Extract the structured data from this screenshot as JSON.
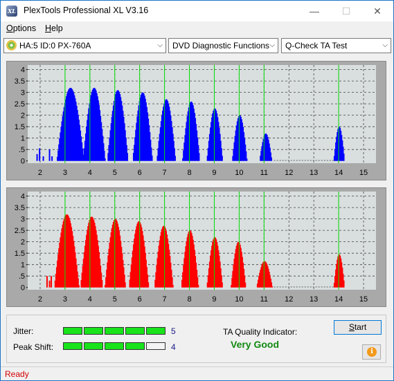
{
  "window": {
    "title": "PlexTools Professional XL V3.16",
    "icon_text": "XL",
    "controls": {
      "minimize": "—",
      "maximize": "☐",
      "close": "✕"
    }
  },
  "menu": {
    "options": {
      "first": "O",
      "rest": "ptions"
    },
    "help": {
      "first": "H",
      "rest": "elp"
    }
  },
  "toolbar": {
    "device": "HA:5 ID:0  PX-760A",
    "function": "DVD Diagnostic Functions",
    "test": "Q-Check TA Test",
    "dropdown_glyph": "⌵"
  },
  "chart_data": [
    {
      "type": "bar",
      "series_color": "#0000ff",
      "background": "#d9dedf",
      "x_ticks": [
        2,
        3,
        4,
        5,
        6,
        7,
        8,
        9,
        10,
        11,
        12,
        13,
        14,
        15
      ],
      "y_ticks": [
        0,
        0.5,
        1,
        1.5,
        2,
        2.5,
        3,
        3.5,
        4
      ],
      "y_tick_labels": [
        "0",
        ".5",
        "1",
        "1.5",
        "2",
        "2.5",
        "3",
        "3.5",
        "4"
      ],
      "xlim": [
        1.5,
        15.5
      ],
      "ylim": [
        -0.1,
        4.2
      ],
      "reference_lines": [
        3,
        4,
        5,
        6,
        7,
        8,
        9,
        10,
        11,
        14
      ],
      "reference_line_color": "#00e000",
      "peaks": [
        {
          "center": 3.2,
          "height": 3.2,
          "width": 0.55
        },
        {
          "center": 4.15,
          "height": 3.2,
          "width": 0.45
        },
        {
          "center": 5.1,
          "height": 3.1,
          "width": 0.42
        },
        {
          "center": 6.1,
          "height": 3.0,
          "width": 0.4
        },
        {
          "center": 7.05,
          "height": 2.7,
          "width": 0.38
        },
        {
          "center": 8.05,
          "height": 2.6,
          "width": 0.35
        },
        {
          "center": 9.0,
          "height": 2.3,
          "width": 0.32
        },
        {
          "center": 10.0,
          "height": 2.0,
          "width": 0.3
        },
        {
          "center": 11.05,
          "height": 1.2,
          "width": 0.25
        },
        {
          "center": 14.0,
          "height": 1.5,
          "width": 0.22
        }
      ],
      "noise": [
        {
          "x": 1.85,
          "y": 0.3
        },
        {
          "x": 1.95,
          "y": 0.55
        },
        {
          "x": 2.1,
          "y": 0.2
        },
        {
          "x": 2.35,
          "y": 0.5
        },
        {
          "x": 2.45,
          "y": 0.2
        }
      ]
    },
    {
      "type": "bar",
      "series_color": "#ff0000",
      "background": "#d9dedf",
      "x_ticks": [
        2,
        3,
        4,
        5,
        6,
        7,
        8,
        9,
        10,
        11,
        12,
        13,
        14,
        15
      ],
      "y_ticks": [
        0,
        0.5,
        1,
        1.5,
        2,
        2.5,
        3,
        3.5,
        4
      ],
      "y_tick_labels": [
        "0",
        ".5",
        "1",
        "1.5",
        "2",
        "2.5",
        "3",
        "3.5",
        "4"
      ],
      "xlim": [
        1.5,
        15.5
      ],
      "ylim": [
        -0.1,
        4.2
      ],
      "reference_lines": [
        3,
        4,
        5,
        6,
        7,
        8,
        9,
        10,
        11,
        14
      ],
      "reference_line_color": "#00e000",
      "peaks": [
        {
          "center": 3.05,
          "height": 3.2,
          "width": 0.5
        },
        {
          "center": 4.05,
          "height": 3.1,
          "width": 0.45
        },
        {
          "center": 5.0,
          "height": 3.0,
          "width": 0.42
        },
        {
          "center": 5.95,
          "height": 2.9,
          "width": 0.4
        },
        {
          "center": 6.95,
          "height": 2.7,
          "width": 0.38
        },
        {
          "center": 8.0,
          "height": 2.5,
          "width": 0.35
        },
        {
          "center": 9.0,
          "height": 2.2,
          "width": 0.32
        },
        {
          "center": 9.95,
          "height": 2.0,
          "width": 0.3
        },
        {
          "center": 11.0,
          "height": 1.15,
          "width": 0.32
        },
        {
          "center": 14.0,
          "height": 1.45,
          "width": 0.22
        }
      ],
      "noise": [
        {
          "x": 2.25,
          "y": 0.5
        },
        {
          "x": 2.35,
          "y": 0.3
        },
        {
          "x": 2.42,
          "y": 0.5
        }
      ]
    }
  ],
  "results": {
    "jitter_label": "Jitter:",
    "jitter_value": "5",
    "jitter_level": 5,
    "peak_label": "Peak Shift:",
    "peak_value": "4",
    "peak_level": 4,
    "meter_max": 5,
    "ta_label": "TA Quality Indicator:",
    "ta_value": "Very Good",
    "start_first": "S",
    "start_rest": "tart",
    "info_glyph": "i"
  },
  "status": {
    "text": "Ready"
  }
}
